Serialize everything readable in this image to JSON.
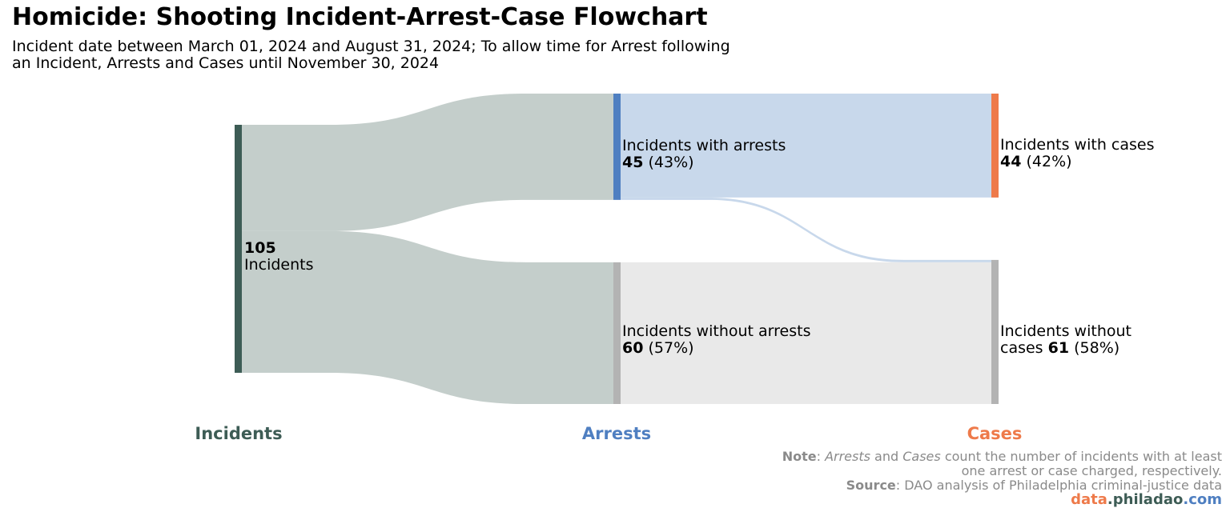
{
  "title": "Homicide: Shooting Incident-Arrest-Case Flowchart",
  "subtitle_line1": "Incident date between March 01, 2024 and August 31, 2024; To allow time for Arrest following",
  "subtitle_line2": "an Incident, Arrests and Cases until November 30, 2024",
  "colors": {
    "incidents": "#3d5c55",
    "arrests": "#4f7fc1",
    "cases": "#ee7a4a",
    "none": "#b3b3b3",
    "flow_incidents": "#c4cecb",
    "flow_arrests": "#c8d8eb",
    "flow_none": "#e9e9e9"
  },
  "chart_data": {
    "type": "sankey",
    "stages": [
      "Incidents",
      "Arrests",
      "Cases"
    ],
    "nodes": [
      {
        "id": "incidents",
        "stage": 0,
        "value": 105,
        "label_value": "105",
        "label_text": "Incidents"
      },
      {
        "id": "arrests",
        "stage": 1,
        "value": 45,
        "label_text": "Incidents with arrests",
        "label_value": "45",
        "label_pct": " (43%)"
      },
      {
        "id": "no_arrests",
        "stage": 1,
        "value": 60,
        "label_text": "Incidents without arrests",
        "label_value": "60",
        "label_pct": " (57%)"
      },
      {
        "id": "cases",
        "stage": 2,
        "value": 44,
        "label_text": "Incidents with cases",
        "label_value": "44",
        "label_pct": " (42%)"
      },
      {
        "id": "no_cases",
        "stage": 2,
        "value": 61,
        "label_text_1": "Incidents without",
        "label_text_2": "cases ",
        "label_value": "61",
        "label_pct": " (58%)"
      }
    ],
    "links": [
      {
        "source": "incidents",
        "target": "arrests",
        "value": 45
      },
      {
        "source": "incidents",
        "target": "no_arrests",
        "value": 60
      },
      {
        "source": "arrests",
        "target": "cases",
        "value": 44
      },
      {
        "source": "arrests",
        "target": "no_cases",
        "value": 1
      },
      {
        "source": "no_arrests",
        "target": "no_cases",
        "value": 60
      }
    ]
  },
  "footer": {
    "note_label": "Note",
    "note_sep": ": ",
    "note_em1": "Arrests",
    "note_and": " and ",
    "note_em2": "Cases",
    "note_rest": " count the number of incidents with at least",
    "note_line2": "one arrest or case charged, respectively.",
    "source_label": "Source",
    "source_text": ": DAO analysis of Philadelphia criminal-justice data",
    "brand_part1": "data",
    "brand_dot1": ".",
    "brand_part2": "philadao",
    "brand_dot2": ".",
    "brand_part3": "com"
  }
}
